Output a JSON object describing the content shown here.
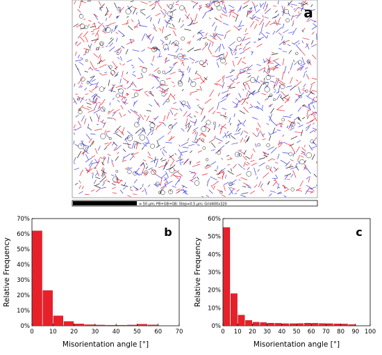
{
  "map": {
    "panel_label": "a",
    "scale_bar_text": "= 50 µm; PB+GB+GB; Step=0.5 µm; Grid400x320",
    "colors": {
      "red": "#e8202a",
      "blue": "#3a3ae0",
      "black": "#1a1a1a",
      "background": "#ffffff"
    }
  },
  "chart_data": [
    {
      "type": "bar",
      "panel_label": "b",
      "xlabel": "Misorientation angle [°]",
      "ylabel": "Relative Frequency",
      "xlim": [
        0,
        70
      ],
      "ylim": [
        0,
        70
      ],
      "xticks": [
        "0",
        "10",
        "20",
        "30",
        "40",
        "50",
        "60",
        "70"
      ],
      "yticks": [
        "0%",
        "10%",
        "20%",
        "30%",
        "40%",
        "50%",
        "60%",
        "70%"
      ],
      "bin_width": 5,
      "bins": [
        {
          "x": 2.5,
          "y": 62
        },
        {
          "x": 7.5,
          "y": 23
        },
        {
          "x": 12.5,
          "y": 6.5
        },
        {
          "x": 17.5,
          "y": 2.8
        },
        {
          "x": 22.5,
          "y": 1.2
        },
        {
          "x": 27.5,
          "y": 0.7
        },
        {
          "x": 32.5,
          "y": 0.5
        },
        {
          "x": 37.5,
          "y": 0.4
        },
        {
          "x": 42.5,
          "y": 0.4
        },
        {
          "x": 47.5,
          "y": 0.5
        },
        {
          "x": 52.5,
          "y": 1.0
        },
        {
          "x": 57.5,
          "y": 0.6
        }
      ],
      "bar_color": "#e8202a"
    },
    {
      "type": "bar",
      "panel_label": "c",
      "xlabel": "Misorientation angle [°]",
      "ylabel": "Relative Frequency",
      "xlim": [
        0,
        100
      ],
      "ylim": [
        0,
        60
      ],
      "xticks": [
        "0",
        "10",
        "20",
        "30",
        "40",
        "50",
        "60",
        "70",
        "80",
        "90",
        "100"
      ],
      "yticks": [
        "0%",
        "10%",
        "20%",
        "30%",
        "40%",
        "50%",
        "60%"
      ],
      "bin_width": 5,
      "bins": [
        {
          "x": 2.5,
          "y": 55
        },
        {
          "x": 7.5,
          "y": 18
        },
        {
          "x": 12.5,
          "y": 6
        },
        {
          "x": 17.5,
          "y": 3
        },
        {
          "x": 22.5,
          "y": 2
        },
        {
          "x": 27.5,
          "y": 1.8
        },
        {
          "x": 32.5,
          "y": 1.5
        },
        {
          "x": 37.5,
          "y": 1.4
        },
        {
          "x": 42.5,
          "y": 1.2
        },
        {
          "x": 47.5,
          "y": 1.2
        },
        {
          "x": 52.5,
          "y": 1.3
        },
        {
          "x": 57.5,
          "y": 1.5
        },
        {
          "x": 62.5,
          "y": 1.4
        },
        {
          "x": 67.5,
          "y": 1.3
        },
        {
          "x": 72.5,
          "y": 1.2
        },
        {
          "x": 77.5,
          "y": 1.1
        },
        {
          "x": 82.5,
          "y": 1.0
        },
        {
          "x": 87.5,
          "y": 0.7
        }
      ],
      "bar_color": "#e8202a"
    }
  ]
}
